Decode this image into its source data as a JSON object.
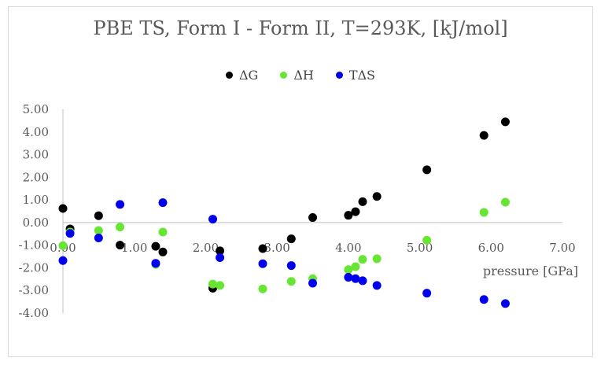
{
  "chart_data": {
    "type": "scatter",
    "title": "PBE TS, Form I - Form II, T=293K, [kJ/mol]",
    "xlabel": "pressure [GPa]",
    "ylabel": "",
    "xlim": [
      0,
      7
    ],
    "ylim": [
      -4,
      5
    ],
    "x_ticks": [
      "0.00",
      "1.00",
      "2.00",
      "3.00",
      "4.00",
      "5.00",
      "6.00",
      "7.00"
    ],
    "y_ticks": [
      "5.00",
      "4.00",
      "3.00",
      "2.00",
      "1.00",
      "0.00",
      "-1.00",
      "-2.00",
      "-3.00",
      "-4.00"
    ],
    "grid": false,
    "legend_position": "top",
    "series": [
      {
        "name": "ΔG",
        "color": "#000000",
        "points": [
          [
            0.0,
            0.62
          ],
          [
            0.1,
            -0.28
          ],
          [
            0.5,
            0.3
          ],
          [
            0.8,
            -1.0
          ],
          [
            1.3,
            -1.05
          ],
          [
            1.4,
            -1.3
          ],
          [
            2.1,
            -2.9
          ],
          [
            2.2,
            -1.25
          ],
          [
            2.8,
            -1.15
          ],
          [
            3.2,
            -0.72
          ],
          [
            3.5,
            0.22
          ],
          [
            4.0,
            0.32
          ],
          [
            4.1,
            0.48
          ],
          [
            4.2,
            0.92
          ],
          [
            4.4,
            1.15
          ],
          [
            5.1,
            2.33
          ],
          [
            5.9,
            3.85
          ],
          [
            6.2,
            4.45
          ]
        ]
      },
      {
        "name": "ΔH",
        "color": "#66e633",
        "points": [
          [
            0.0,
            -1.02
          ],
          [
            0.1,
            -0.42
          ],
          [
            0.5,
            -0.35
          ],
          [
            0.8,
            -0.2
          ],
          [
            1.3,
            -1.85
          ],
          [
            1.4,
            -0.42
          ],
          [
            2.1,
            -2.72
          ],
          [
            2.2,
            -2.78
          ],
          [
            2.8,
            -2.93
          ],
          [
            3.2,
            -2.6
          ],
          [
            3.5,
            -2.48
          ],
          [
            4.0,
            -2.08
          ],
          [
            4.1,
            -1.95
          ],
          [
            4.2,
            -1.63
          ],
          [
            4.4,
            -1.6
          ],
          [
            5.1,
            -0.78
          ],
          [
            5.9,
            0.45
          ],
          [
            6.2,
            0.9
          ]
        ]
      },
      {
        "name": "TΔS",
        "color": "#0000ee",
        "points": [
          [
            0.0,
            -1.68
          ],
          [
            0.1,
            -0.48
          ],
          [
            0.5,
            -0.68
          ],
          [
            0.8,
            0.8
          ],
          [
            1.3,
            -1.8
          ],
          [
            1.4,
            0.88
          ],
          [
            2.1,
            0.15
          ],
          [
            2.2,
            -1.55
          ],
          [
            2.8,
            -1.82
          ],
          [
            3.2,
            -1.9
          ],
          [
            3.5,
            -2.68
          ],
          [
            4.0,
            -2.42
          ],
          [
            4.1,
            -2.48
          ],
          [
            4.2,
            -2.57
          ],
          [
            4.4,
            -2.78
          ],
          [
            5.1,
            -3.12
          ],
          [
            5.9,
            -3.4
          ],
          [
            6.2,
            -3.58
          ]
        ]
      }
    ]
  }
}
